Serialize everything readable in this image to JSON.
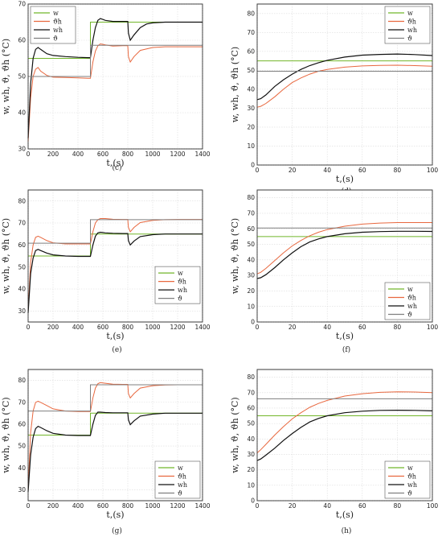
{
  "colors": {
    "w": "#72b62a",
    "theta_h": "#e8683f",
    "w_h": "#111111",
    "theta": "#7f7f7f"
  },
  "legend_labels": [
    "w",
    "ϑh",
    "wh",
    "ϑ"
  ],
  "xlabel": "t,(s)",
  "ylabel": "w, wh, ϑ, ϑh (°C)",
  "chart_data": [
    {
      "panel": "c",
      "type": "line",
      "caption": "(c)",
      "xlim": [
        0,
        1400
      ],
      "ylim": [
        30,
        70
      ],
      "xticks": [
        0,
        200,
        400,
        600,
        800,
        1000,
        1200,
        1400
      ],
      "yticks": [
        30,
        40,
        50,
        60,
        70
      ],
      "grid": true,
      "legend_position": "top-left",
      "series": [
        {
          "name": "w",
          "x": [
            0,
            500,
            500,
            1400
          ],
          "y": [
            55,
            55,
            65,
            65
          ]
        },
        {
          "name": "ϑh",
          "x": [
            0,
            20,
            40,
            60,
            80,
            100,
            150,
            200,
            300,
            400,
            480,
            500,
            520,
            540,
            560,
            580,
            620,
            680,
            760,
            800,
            805,
            820,
            850,
            900,
            1000,
            1100,
            1200,
            1400
          ],
          "y": [
            32,
            44,
            50,
            52,
            52.5,
            51.5,
            50.3,
            49.8,
            49.7,
            49.6,
            49.5,
            49.5,
            54,
            57,
            58.5,
            59,
            58.7,
            58.4,
            58.5,
            58.5,
            55.5,
            54,
            55.5,
            57.2,
            58,
            58.2,
            58.2,
            58.2
          ]
        },
        {
          "name": "wh",
          "x": [
            0,
            20,
            40,
            60,
            80,
            100,
            150,
            200,
            300,
            400,
            480,
            500,
            520,
            540,
            560,
            580,
            620,
            680,
            760,
            800,
            805,
            820,
            850,
            900,
            950,
            1000,
            1100,
            1200,
            1400
          ],
          "y": [
            33,
            48,
            55,
            57.5,
            58,
            57.5,
            56.3,
            55.8,
            55.5,
            55.3,
            55.2,
            55.2,
            60,
            63.5,
            65.5,
            66,
            65.5,
            65.2,
            65.2,
            65.2,
            62,
            60,
            61.5,
            63.5,
            64.5,
            64.8,
            65,
            65,
            65
          ]
        },
        {
          "name": "ϑ",
          "x": [
            0,
            500,
            500,
            1400
          ],
          "y": [
            50,
            50,
            58.6,
            58.6
          ]
        }
      ]
    },
    {
      "panel": "d",
      "type": "line",
      "caption": "(d)",
      "xlim": [
        0,
        100
      ],
      "ylim": [
        0,
        85
      ],
      "xticks": [
        0,
        20,
        40,
        60,
        80,
        100
      ],
      "yticks": [
        0,
        10,
        20,
        30,
        40,
        50,
        60,
        70,
        80
      ],
      "grid": true,
      "legend_position": "top-right",
      "series": [
        {
          "name": "w",
          "x": [
            0,
            100
          ],
          "y": [
            55,
            55
          ]
        },
        {
          "name": "ϑh",
          "x": [
            0,
            2,
            5,
            10,
            15,
            20,
            25,
            30,
            35,
            40,
            50,
            60,
            70,
            80,
            90,
            100
          ],
          "y": [
            30.5,
            31,
            32.5,
            36,
            40,
            43.5,
            46,
            48,
            49.5,
            50.5,
            51.7,
            52.3,
            52.6,
            52.7,
            52.5,
            52.2
          ]
        },
        {
          "name": "wh",
          "x": [
            0,
            2,
            5,
            10,
            15,
            20,
            25,
            30,
            35,
            40,
            50,
            60,
            70,
            80,
            90,
            100
          ],
          "y": [
            34.5,
            35,
            37,
            41.5,
            45,
            48,
            50.5,
            52.5,
            54,
            55.3,
            57,
            58,
            58.4,
            58.6,
            58.3,
            57.8
          ]
        },
        {
          "name": "ϑ",
          "x": [
            0,
            100
          ],
          "y": [
            49.5,
            49.5
          ]
        }
      ]
    },
    {
      "panel": "e",
      "type": "line",
      "caption": "(e)",
      "xlim": [
        0,
        1400
      ],
      "ylim": [
        25,
        85
      ],
      "xticks": [
        0,
        200,
        400,
        600,
        800,
        1000,
        1200,
        1400
      ],
      "yticks": [
        30,
        40,
        50,
        60,
        70,
        80
      ],
      "grid": true,
      "legend_position": "center-right",
      "series": [
        {
          "name": "w",
          "x": [
            0,
            500,
            500,
            1400
          ],
          "y": [
            55,
            55,
            65,
            65
          ]
        },
        {
          "name": "ϑh",
          "x": [
            0,
            20,
            40,
            60,
            80,
            100,
            150,
            200,
            300,
            400,
            480,
            500,
            520,
            540,
            560,
            580,
            620,
            680,
            760,
            800,
            805,
            820,
            850,
            900,
            1000,
            1100,
            1200,
            1400
          ],
          "y": [
            30,
            52,
            60,
            63.5,
            64,
            63.5,
            62,
            61,
            60.5,
            60.5,
            60.5,
            60.5,
            66,
            70,
            71.5,
            72,
            72,
            71.7,
            71.6,
            71.6,
            68,
            66,
            68,
            70.2,
            71.2,
            71.5,
            71.6,
            71.6
          ]
        },
        {
          "name": "wh",
          "x": [
            0,
            20,
            40,
            60,
            80,
            100,
            150,
            200,
            300,
            400,
            480,
            500,
            520,
            540,
            560,
            580,
            620,
            680,
            760,
            800,
            805,
            820,
            850,
            900,
            1000,
            1100,
            1200,
            1400
          ],
          "y": [
            29,
            47,
            54,
            57.5,
            58,
            57.5,
            56.3,
            55.5,
            55,
            54.8,
            54.8,
            54.8,
            60,
            64,
            65.5,
            65.8,
            65.5,
            65.3,
            65.2,
            65.2,
            62,
            60,
            61.8,
            63.8,
            64.7,
            65,
            65,
            65
          ]
        },
        {
          "name": "ϑ",
          "x": [
            0,
            500,
            500,
            1400
          ],
          "y": [
            60.8,
            60.8,
            71.5,
            71.5
          ]
        }
      ]
    },
    {
      "panel": "f",
      "type": "line",
      "caption": "(f)",
      "xlim": [
        0,
        100
      ],
      "ylim": [
        0,
        85
      ],
      "xticks": [
        0,
        20,
        40,
        60,
        80,
        100
      ],
      "yticks": [
        0,
        10,
        20,
        30,
        40,
        50,
        60,
        70,
        80
      ],
      "grid": true,
      "legend_position": "bottom-right",
      "series": [
        {
          "name": "w",
          "x": [
            0,
            100
          ],
          "y": [
            55,
            55
          ]
        },
        {
          "name": "ϑh",
          "x": [
            0,
            2,
            5,
            10,
            15,
            20,
            25,
            30,
            35,
            40,
            50,
            60,
            70,
            80,
            90,
            100
          ],
          "y": [
            31,
            32,
            34.5,
            39.5,
            44.5,
            49,
            52.5,
            55.5,
            57.8,
            59.5,
            61.7,
            63,
            63.7,
            64,
            64,
            64
          ]
        },
        {
          "name": "wh",
          "x": [
            0,
            2,
            5,
            10,
            15,
            20,
            25,
            30,
            35,
            40,
            50,
            60,
            70,
            80,
            90,
            100
          ],
          "y": [
            28,
            28.5,
            30.5,
            35,
            40,
            44.5,
            48.5,
            51.5,
            53.5,
            55,
            56.8,
            57.8,
            58.2,
            58.4,
            58.4,
            58.3
          ]
        },
        {
          "name": "ϑ",
          "x": [
            0,
            100
          ],
          "y": [
            60.5,
            60.5
          ]
        }
      ]
    },
    {
      "panel": "g",
      "type": "line",
      "caption": "(g)",
      "xlim": [
        0,
        1400
      ],
      "ylim": [
        25,
        85
      ],
      "xticks": [
        0,
        200,
        400,
        600,
        800,
        1000,
        1200,
        1400
      ],
      "yticks": [
        30,
        40,
        50,
        60,
        70,
        80
      ],
      "grid": true,
      "legend_position": "bottom-right",
      "series": [
        {
          "name": "w",
          "x": [
            0,
            500,
            500,
            1400
          ],
          "y": [
            55,
            55,
            65,
            65
          ]
        },
        {
          "name": "ϑh",
          "x": [
            0,
            20,
            40,
            60,
            80,
            100,
            150,
            200,
            300,
            400,
            480,
            500,
            520,
            540,
            560,
            580,
            620,
            680,
            760,
            800,
            805,
            820,
            850,
            900,
            1000,
            1100,
            1200,
            1400
          ],
          "y": [
            30,
            56,
            66,
            70,
            70.5,
            70,
            68.5,
            67,
            66,
            65.8,
            65.8,
            65.8,
            72,
            76.5,
            78.5,
            79,
            78.7,
            78.3,
            78.2,
            78.2,
            74,
            72,
            74,
            76.5,
            77.6,
            77.9,
            78,
            78
          ]
        },
        {
          "name": "wh",
          "x": [
            0,
            20,
            40,
            60,
            80,
            100,
            150,
            200,
            300,
            400,
            480,
            500,
            520,
            540,
            560,
            580,
            620,
            680,
            760,
            800,
            805,
            820,
            850,
            900,
            1000,
            1100,
            1200,
            1400
          ],
          "y": [
            29,
            46,
            54,
            58,
            59,
            58.5,
            57,
            55.8,
            55,
            54.8,
            54.8,
            54.8,
            60,
            64,
            65.5,
            65.5,
            65.3,
            65.2,
            65.2,
            65.2,
            62,
            59.8,
            61.5,
            63.7,
            64.6,
            65,
            65,
            65
          ]
        },
        {
          "name": "ϑ",
          "x": [
            0,
            500,
            500,
            1400
          ],
          "y": [
            66,
            66,
            78,
            78
          ]
        }
      ]
    },
    {
      "panel": "h",
      "type": "line",
      "caption": "(h)",
      "xlim": [
        0,
        100
      ],
      "ylim": [
        0,
        85
      ],
      "xticks": [
        0,
        20,
        40,
        60,
        80,
        100
      ],
      "yticks": [
        0,
        10,
        20,
        30,
        40,
        50,
        60,
        70,
        80
      ],
      "grid": true,
      "legend_position": "bottom-right",
      "series": [
        {
          "name": "w",
          "x": [
            0,
            100
          ],
          "y": [
            55,
            55
          ]
        },
        {
          "name": "ϑh",
          "x": [
            0,
            2,
            5,
            10,
            15,
            20,
            25,
            30,
            35,
            40,
            50,
            60,
            70,
            80,
            90,
            100
          ],
          "y": [
            31,
            33,
            36.5,
            42.5,
            48,
            53,
            57,
            60.5,
            63,
            65,
            67.8,
            69.3,
            70.2,
            70.5,
            70.4,
            70
          ]
        },
        {
          "name": "wh",
          "x": [
            0,
            2,
            5,
            10,
            15,
            20,
            25,
            30,
            35,
            40,
            50,
            60,
            70,
            80,
            90,
            100
          ],
          "y": [
            26,
            27,
            29.5,
            34,
            39,
            43.5,
            47.5,
            51,
            53.3,
            55,
            57,
            58,
            58.5,
            58.6,
            58.5,
            58.2
          ]
        },
        {
          "name": "ϑ",
          "x": [
            0,
            100
          ],
          "y": [
            66,
            66
          ]
        }
      ]
    }
  ]
}
